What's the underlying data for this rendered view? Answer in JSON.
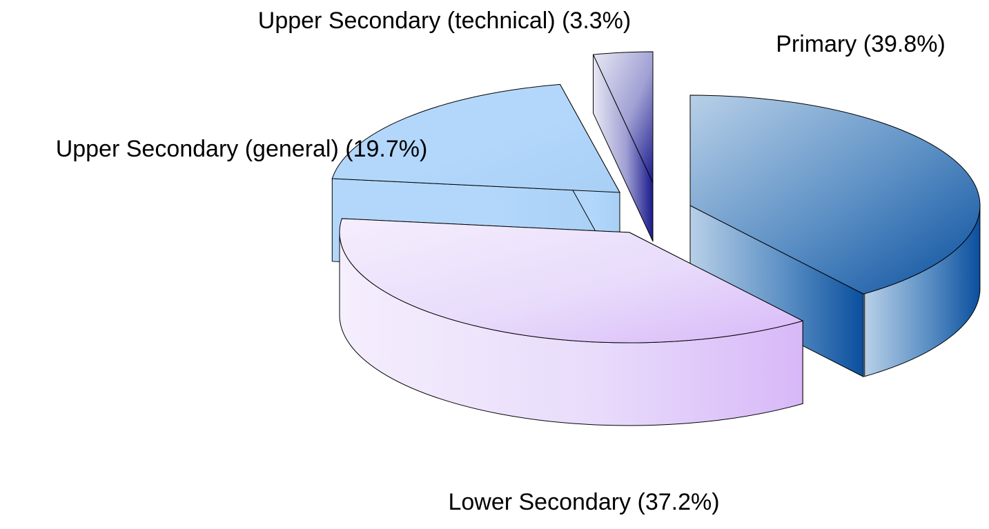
{
  "chart_data": {
    "type": "pie",
    "title": "",
    "style": "3d-exploded",
    "start_angle_deg": -90,
    "direction": "clockwise",
    "slices": [
      {
        "category": "Primary",
        "value": 39.8,
        "label": "Primary (39.8%)",
        "colors": {
          "light": "#b8d0e8",
          "mid": "#5b8fc4",
          "dark": "#0a4f9e"
        }
      },
      {
        "category": "Lower Secondary",
        "value": 37.2,
        "label": "Lower Secondary (37.2%)",
        "colors": {
          "light": "#f5eefd",
          "mid": "#e8dcfb",
          "dark": "#d8b8f8"
        }
      },
      {
        "category": "Upper Secondary (general)",
        "value": 19.7,
        "label": "Upper Secondary (general) (19.7%)",
        "colors": {
          "light": "#b3d7fb",
          "mid": "#b3d7fb",
          "dark": "#a8cff5"
        }
      },
      {
        "category": "Upper Secondary (technical)",
        "value": 3.3,
        "label": "Upper Secondary (technical) (3.3%)",
        "colors": {
          "light": "#e8e8f4",
          "mid": "#a0a0d4",
          "dark": "#1a1a8c"
        }
      }
    ]
  }
}
